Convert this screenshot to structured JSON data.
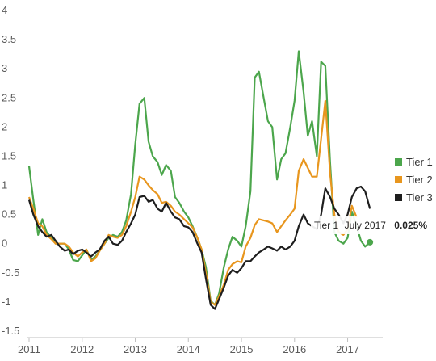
{
  "chart_data": {
    "type": "line",
    "title": "",
    "xlabel": "",
    "ylabel": "",
    "ylim": [
      -1.5,
      4
    ],
    "xlim": [
      2011,
      2017.6
    ],
    "y_ticks": [
      "4",
      "3.5",
      "3",
      "2.5",
      "2",
      "1.5",
      "1",
      "0.5",
      "0",
      "-0.5",
      "-1",
      "-1.5"
    ],
    "y_tick_values": [
      4,
      3.5,
      3,
      2.5,
      2,
      1.5,
      1,
      0.5,
      0,
      -0.5,
      -1,
      -1.5
    ],
    "x_ticks": [
      "2011",
      "2012",
      "2013",
      "2014",
      "2015",
      "2016",
      "2017"
    ],
    "x_tick_values": [
      2011,
      2012,
      2013,
      2014,
      2015,
      2016,
      2017
    ],
    "grid": false,
    "legend_position": "right",
    "series": [
      {
        "name": "Tier 1",
        "color": "#4ca64c",
        "points": [
          [
            2011.0,
            1.33
          ],
          [
            2011.08,
            0.75
          ],
          [
            2011.17,
            0.15
          ],
          [
            2011.25,
            0.42
          ],
          [
            2011.33,
            0.2
          ],
          [
            2011.42,
            0.1
          ],
          [
            2011.5,
            0.0
          ],
          [
            2011.58,
            0.0
          ],
          [
            2011.67,
            0.0
          ],
          [
            2011.75,
            -0.1
          ],
          [
            2011.83,
            -0.28
          ],
          [
            2011.92,
            -0.3
          ],
          [
            2012.0,
            -0.2
          ],
          [
            2012.08,
            -0.1
          ],
          [
            2012.17,
            -0.28
          ],
          [
            2012.25,
            -0.22
          ],
          [
            2012.33,
            -0.12
          ],
          [
            2012.42,
            0.0
          ],
          [
            2012.5,
            0.1
          ],
          [
            2012.58,
            0.15
          ],
          [
            2012.67,
            0.12
          ],
          [
            2012.75,
            0.2
          ],
          [
            2012.83,
            0.4
          ],
          [
            2012.92,
            0.85
          ],
          [
            2013.0,
            1.7
          ],
          [
            2013.08,
            2.4
          ],
          [
            2013.17,
            2.5
          ],
          [
            2013.25,
            1.75
          ],
          [
            2013.33,
            1.5
          ],
          [
            2013.42,
            1.4
          ],
          [
            2013.5,
            1.18
          ],
          [
            2013.58,
            1.35
          ],
          [
            2013.67,
            1.25
          ],
          [
            2013.75,
            0.8
          ],
          [
            2013.83,
            0.7
          ],
          [
            2013.92,
            0.55
          ],
          [
            2014.0,
            0.45
          ],
          [
            2014.08,
            0.3
          ],
          [
            2014.17,
            0.1
          ],
          [
            2014.25,
            -0.1
          ],
          [
            2014.33,
            -0.4
          ],
          [
            2014.42,
            -0.98
          ],
          [
            2014.5,
            -1.05
          ],
          [
            2014.58,
            -0.85
          ],
          [
            2014.67,
            -0.4
          ],
          [
            2014.75,
            -0.1
          ],
          [
            2014.83,
            0.12
          ],
          [
            2014.92,
            0.05
          ],
          [
            2015.0,
            -0.05
          ],
          [
            2015.08,
            0.3
          ],
          [
            2015.17,
            0.9
          ],
          [
            2015.25,
            2.85
          ],
          [
            2015.33,
            2.95
          ],
          [
            2015.42,
            2.5
          ],
          [
            2015.5,
            2.1
          ],
          [
            2015.58,
            2.0
          ],
          [
            2015.67,
            1.1
          ],
          [
            2015.75,
            1.45
          ],
          [
            2015.83,
            1.55
          ],
          [
            2015.92,
            2.0
          ],
          [
            2016.0,
            2.45
          ],
          [
            2016.08,
            3.3
          ],
          [
            2016.17,
            2.6
          ],
          [
            2016.25,
            1.85
          ],
          [
            2016.33,
            2.1
          ],
          [
            2016.42,
            1.5
          ],
          [
            2016.5,
            3.12
          ],
          [
            2016.58,
            3.05
          ],
          [
            2016.67,
            1.4
          ],
          [
            2016.75,
            0.2
          ],
          [
            2016.83,
            0.05
          ],
          [
            2016.92,
            0.0
          ],
          [
            2017.0,
            0.1
          ],
          [
            2017.08,
            0.55
          ],
          [
            2017.17,
            0.3
          ],
          [
            2017.25,
            0.05
          ],
          [
            2017.33,
            -0.05
          ],
          [
            2017.42,
            0.025
          ]
        ]
      },
      {
        "name": "Tier 2",
        "color": "#e8961e",
        "points": [
          [
            2011.0,
            0.8
          ],
          [
            2011.08,
            0.6
          ],
          [
            2011.17,
            0.35
          ],
          [
            2011.25,
            0.3
          ],
          [
            2011.33,
            0.15
          ],
          [
            2011.42,
            0.08
          ],
          [
            2011.5,
            0.0
          ],
          [
            2011.58,
            0.0
          ],
          [
            2011.67,
            0.0
          ],
          [
            2011.75,
            -0.05
          ],
          [
            2011.83,
            -0.15
          ],
          [
            2011.92,
            -0.22
          ],
          [
            2012.0,
            -0.15
          ],
          [
            2012.08,
            -0.1
          ],
          [
            2012.17,
            -0.3
          ],
          [
            2012.25,
            -0.25
          ],
          [
            2012.33,
            -0.12
          ],
          [
            2012.42,
            0.0
          ],
          [
            2012.5,
            0.15
          ],
          [
            2012.58,
            0.12
          ],
          [
            2012.67,
            0.1
          ],
          [
            2012.75,
            0.15
          ],
          [
            2012.83,
            0.3
          ],
          [
            2012.92,
            0.55
          ],
          [
            2013.0,
            0.8
          ],
          [
            2013.08,
            1.15
          ],
          [
            2013.17,
            1.1
          ],
          [
            2013.25,
            1.0
          ],
          [
            2013.33,
            0.92
          ],
          [
            2013.42,
            0.85
          ],
          [
            2013.5,
            0.7
          ],
          [
            2013.58,
            0.72
          ],
          [
            2013.67,
            0.65
          ],
          [
            2013.75,
            0.55
          ],
          [
            2013.83,
            0.5
          ],
          [
            2013.92,
            0.42
          ],
          [
            2014.0,
            0.35
          ],
          [
            2014.08,
            0.28
          ],
          [
            2014.17,
            0.1
          ],
          [
            2014.25,
            -0.1
          ],
          [
            2014.33,
            -0.5
          ],
          [
            2014.42,
            -1.0
          ],
          [
            2014.5,
            -1.05
          ],
          [
            2014.58,
            -0.9
          ],
          [
            2014.67,
            -0.7
          ],
          [
            2014.75,
            -0.45
          ],
          [
            2014.83,
            -0.35
          ],
          [
            2014.92,
            -0.3
          ],
          [
            2015.0,
            -0.32
          ],
          [
            2015.08,
            -0.05
          ],
          [
            2015.17,
            0.1
          ],
          [
            2015.25,
            0.32
          ],
          [
            2015.33,
            0.42
          ],
          [
            2015.42,
            0.4
          ],
          [
            2015.5,
            0.38
          ],
          [
            2015.58,
            0.35
          ],
          [
            2015.67,
            0.2
          ],
          [
            2015.75,
            0.3
          ],
          [
            2015.83,
            0.4
          ],
          [
            2015.92,
            0.5
          ],
          [
            2016.0,
            0.6
          ],
          [
            2016.08,
            1.25
          ],
          [
            2016.17,
            1.45
          ],
          [
            2016.25,
            1.3
          ],
          [
            2016.33,
            1.15
          ],
          [
            2016.42,
            1.15
          ],
          [
            2016.5,
            1.8
          ],
          [
            2016.58,
            2.45
          ],
          [
            2016.67,
            1.2
          ],
          [
            2016.75,
            0.5
          ],
          [
            2016.83,
            0.2
          ],
          [
            2016.92,
            0.15
          ],
          [
            2017.0,
            0.25
          ],
          [
            2017.08,
            0.65
          ],
          [
            2017.17,
            0.45
          ]
        ]
      },
      {
        "name": "Tier 3",
        "color": "#1e1e1e",
        "points": [
          [
            2011.0,
            0.75
          ],
          [
            2011.08,
            0.5
          ],
          [
            2011.17,
            0.3
          ],
          [
            2011.25,
            0.2
          ],
          [
            2011.33,
            0.12
          ],
          [
            2011.42,
            0.15
          ],
          [
            2011.5,
            0.05
          ],
          [
            2011.58,
            -0.05
          ],
          [
            2011.67,
            -0.12
          ],
          [
            2011.75,
            -0.1
          ],
          [
            2011.83,
            -0.18
          ],
          [
            2011.92,
            -0.12
          ],
          [
            2012.0,
            -0.1
          ],
          [
            2012.08,
            -0.15
          ],
          [
            2012.17,
            -0.22
          ],
          [
            2012.25,
            -0.15
          ],
          [
            2012.33,
            -0.1
          ],
          [
            2012.42,
            0.05
          ],
          [
            2012.5,
            0.12
          ],
          [
            2012.58,
            0.0
          ],
          [
            2012.67,
            -0.02
          ],
          [
            2012.75,
            0.05
          ],
          [
            2012.83,
            0.2
          ],
          [
            2012.92,
            0.35
          ],
          [
            2013.0,
            0.5
          ],
          [
            2013.08,
            0.8
          ],
          [
            2013.17,
            0.82
          ],
          [
            2013.25,
            0.72
          ],
          [
            2013.33,
            0.75
          ],
          [
            2013.42,
            0.6
          ],
          [
            2013.5,
            0.55
          ],
          [
            2013.58,
            0.7
          ],
          [
            2013.67,
            0.55
          ],
          [
            2013.75,
            0.45
          ],
          [
            2013.83,
            0.42
          ],
          [
            2013.92,
            0.3
          ],
          [
            2014.0,
            0.28
          ],
          [
            2014.08,
            0.2
          ],
          [
            2014.17,
            0.0
          ],
          [
            2014.25,
            -0.15
          ],
          [
            2014.33,
            -0.6
          ],
          [
            2014.42,
            -1.05
          ],
          [
            2014.5,
            -1.12
          ],
          [
            2014.58,
            -0.95
          ],
          [
            2014.67,
            -0.75
          ],
          [
            2014.75,
            -0.55
          ],
          [
            2014.83,
            -0.45
          ],
          [
            2014.92,
            -0.5
          ],
          [
            2015.0,
            -0.42
          ],
          [
            2015.08,
            -0.3
          ],
          [
            2015.17,
            -0.3
          ],
          [
            2015.25,
            -0.22
          ],
          [
            2015.33,
            -0.15
          ],
          [
            2015.42,
            -0.1
          ],
          [
            2015.5,
            -0.05
          ],
          [
            2015.58,
            -0.08
          ],
          [
            2015.67,
            -0.12
          ],
          [
            2015.75,
            -0.05
          ],
          [
            2015.83,
            -0.1
          ],
          [
            2015.92,
            -0.05
          ],
          [
            2016.0,
            0.05
          ],
          [
            2016.08,
            0.3
          ],
          [
            2016.17,
            0.5
          ],
          [
            2016.25,
            0.35
          ],
          [
            2016.33,
            0.3
          ],
          [
            2016.42,
            0.25
          ],
          [
            2016.5,
            0.5
          ],
          [
            2016.58,
            0.95
          ],
          [
            2016.67,
            0.8
          ],
          [
            2016.75,
            0.6
          ],
          [
            2016.83,
            0.5
          ],
          [
            2016.92,
            0.35
          ],
          [
            2017.0,
            0.5
          ],
          [
            2017.08,
            0.8
          ],
          [
            2017.17,
            0.95
          ],
          [
            2017.25,
            0.98
          ],
          [
            2017.33,
            0.9
          ],
          [
            2017.42,
            0.6
          ]
        ]
      }
    ],
    "tooltip": {
      "series": "Tier 1",
      "date": "July 2017",
      "value": "0.025%",
      "x": 2017.42,
      "y": 0.025
    }
  },
  "legend": [
    {
      "label": "Tier 1",
      "color": "#4ca64c"
    },
    {
      "label": "Tier 2",
      "color": "#e8961e"
    },
    {
      "label": "Tier 3",
      "color": "#1e1e1e"
    }
  ]
}
